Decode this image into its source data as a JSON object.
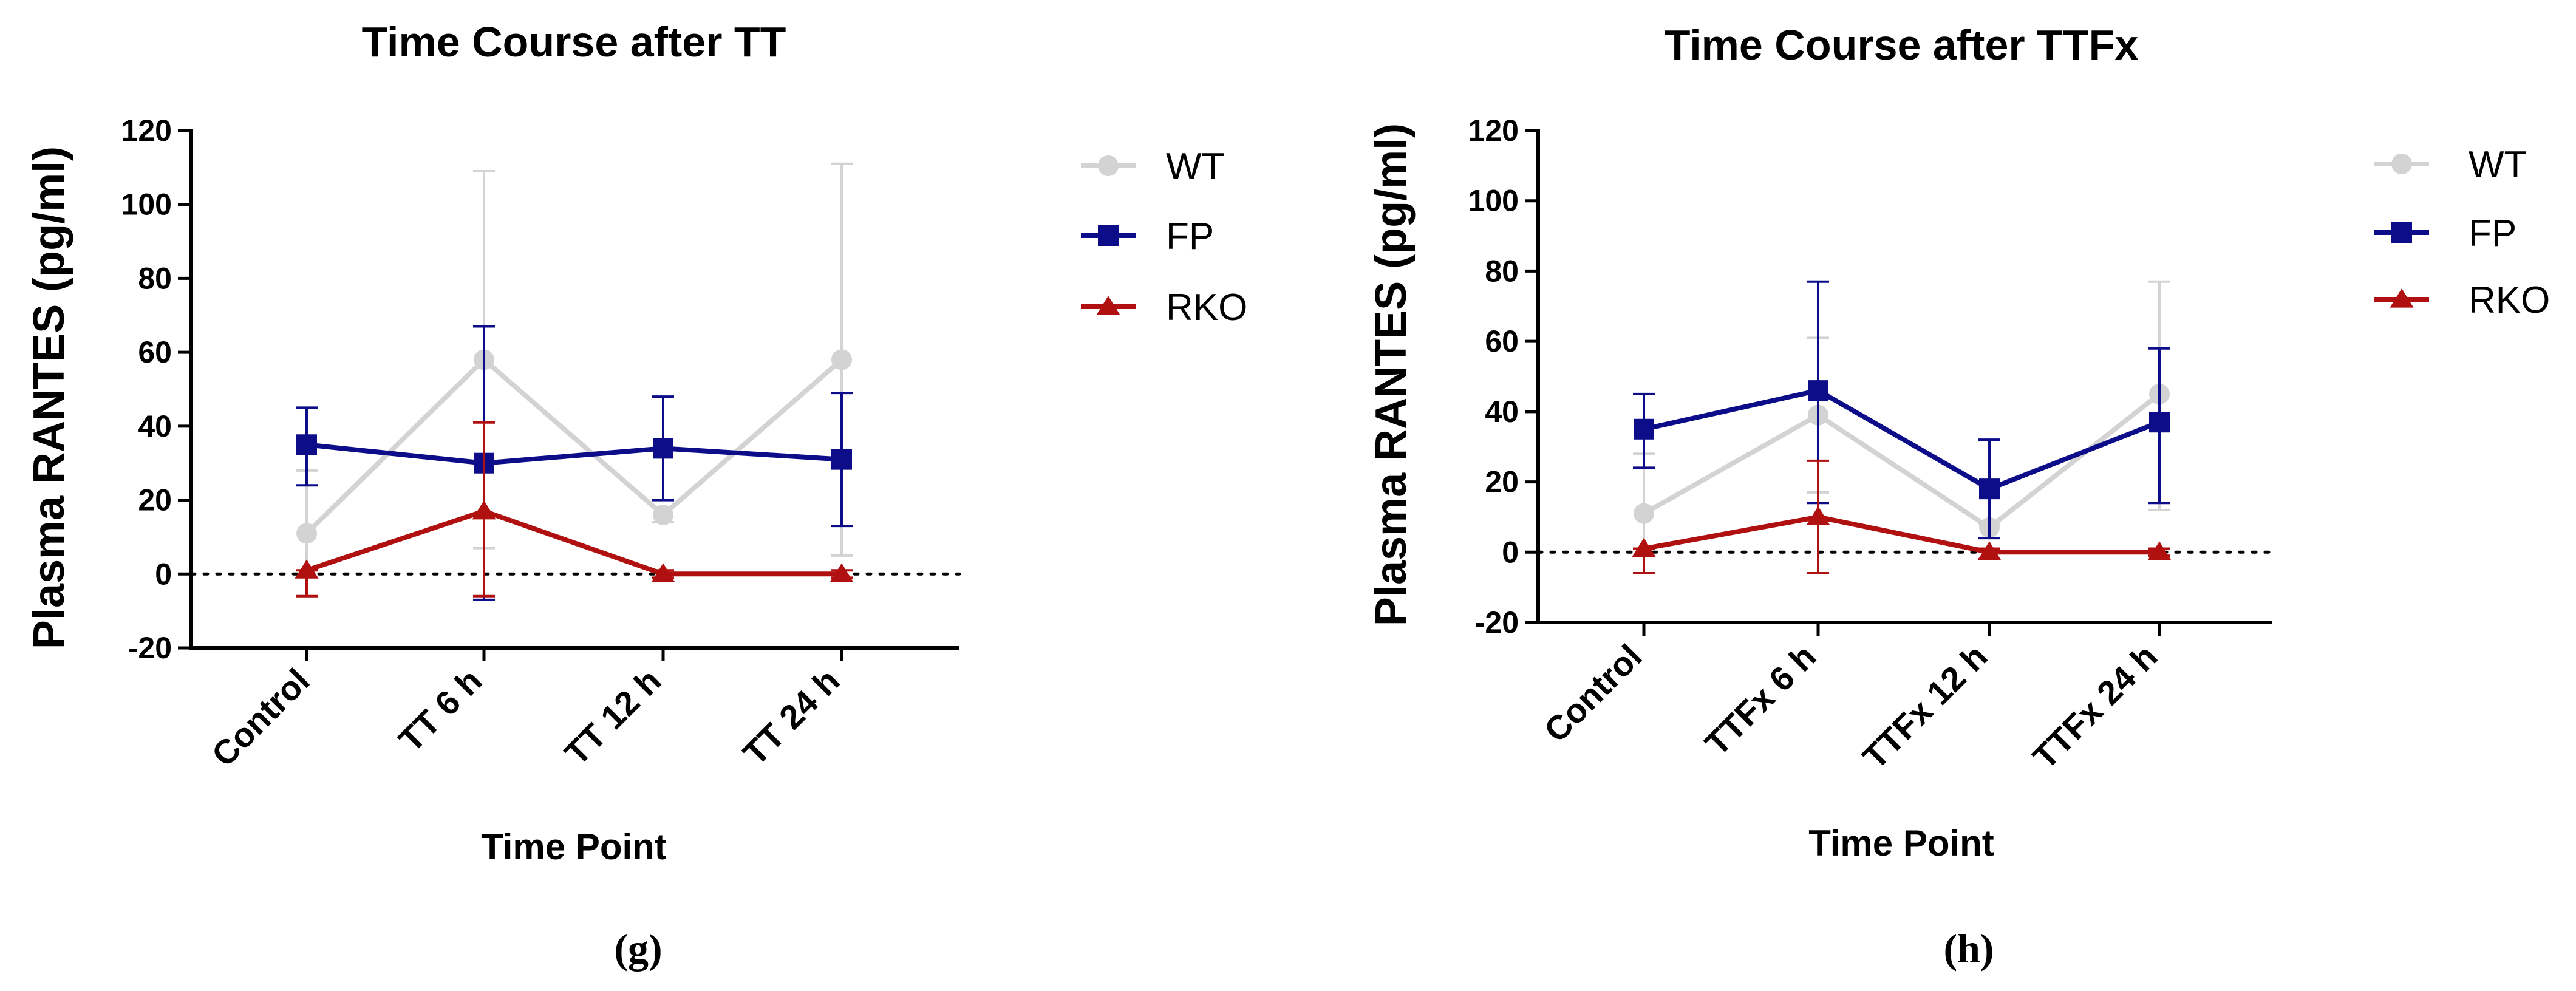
{
  "chart_data": [
    {
      "type": "line",
      "title": "Time Course after TT",
      "xlabel": "Time Point",
      "ylabel": "Plasma RANTES (pg/ml)",
      "panel_label": "(g)",
      "categories": [
        "Control",
        "TT 6 h",
        "TT 12 h",
        "TT 24 h"
      ],
      "ylim": [
        -20,
        120
      ],
      "yticks": [
        -20,
        0,
        20,
        40,
        60,
        80,
        100,
        120
      ],
      "reference_line": 0,
      "series": [
        {
          "name": "WT",
          "marker": "circle",
          "color": "#d3d3d3",
          "values": [
            11,
            58,
            16,
            58
          ],
          "err_upper": [
            28,
            109,
            18,
            111
          ],
          "err_lower": [
            -6,
            7,
            14,
            5
          ]
        },
        {
          "name": "FP",
          "marker": "square",
          "color": "#0d0d8a",
          "values": [
            35,
            30,
            34,
            31
          ],
          "err_upper": [
            45,
            67,
            48,
            49
          ],
          "err_lower": [
            24,
            -7,
            20,
            13
          ]
        },
        {
          "name": "RKO",
          "marker": "triangle",
          "color": "#b01010",
          "values": [
            1,
            17,
            0,
            0
          ],
          "err_upper": [
            1,
            41,
            1,
            1
          ],
          "err_lower": [
            -6,
            -6,
            -1,
            -1
          ]
        }
      ]
    },
    {
      "type": "line",
      "title": "Time Course after TTFx",
      "xlabel": "Time Point",
      "ylabel": "Plasma RANTES (pg/ml)",
      "panel_label": "(h)",
      "categories": [
        "Control",
        "TTFx 6 h",
        "TTFx 12 h",
        "TTFx 24 h"
      ],
      "ylim": [
        -20,
        120
      ],
      "yticks": [
        -20,
        0,
        20,
        40,
        60,
        80,
        100,
        120
      ],
      "reference_line": 0,
      "series": [
        {
          "name": "WT",
          "marker": "circle",
          "color": "#d3d3d3",
          "values": [
            11,
            39,
            7,
            45
          ],
          "err_upper": [
            28,
            61,
            8,
            77
          ],
          "err_lower": [
            -6,
            17,
            4,
            12
          ]
        },
        {
          "name": "FP",
          "marker": "square",
          "color": "#0d0d8a",
          "values": [
            35,
            46,
            18,
            37
          ],
          "err_upper": [
            45,
            77,
            32,
            58
          ],
          "err_lower": [
            24,
            14,
            4,
            14
          ]
        },
        {
          "name": "RKO",
          "marker": "triangle",
          "color": "#b01010",
          "values": [
            1,
            10,
            0,
            0
          ],
          "err_upper": [
            1,
            26,
            1,
            1
          ],
          "err_lower": [
            -6,
            -6,
            -2,
            -1
          ]
        }
      ]
    }
  ]
}
